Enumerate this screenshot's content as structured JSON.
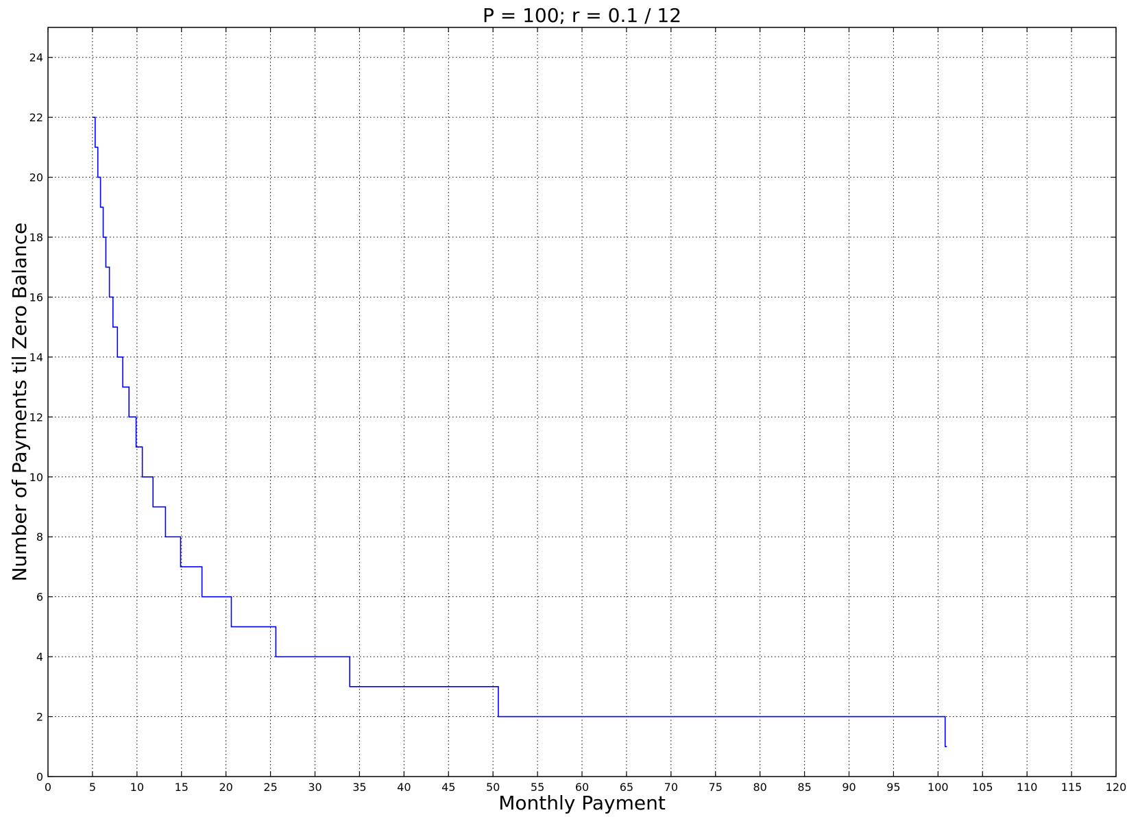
{
  "chart_data": {
    "type": "line",
    "title": "P = 100; r = 0.1 / 12",
    "xlabel": "Monthly Payment",
    "ylabel": "Number of Payments til Zero Balance",
    "xlim": [
      0,
      120
    ],
    "ylim": [
      0,
      25
    ],
    "grid": true,
    "x_ticks": [
      0,
      5,
      10,
      15,
      20,
      25,
      30,
      35,
      40,
      45,
      50,
      55,
      60,
      65,
      70,
      75,
      80,
      85,
      90,
      95,
      100,
      105,
      110,
      115,
      120
    ],
    "y_ticks": [
      0,
      2,
      4,
      6,
      8,
      10,
      12,
      14,
      16,
      18,
      20,
      22,
      24
    ],
    "series": [
      {
        "color": "#0000ff",
        "step": true,
        "x": [
          5.0,
          5.3,
          5.6,
          5.9,
          6.2,
          6.5,
          6.9,
          7.3,
          7.8,
          8.4,
          9.1,
          9.9,
          10.6,
          11.8,
          13.2,
          14.9,
          17.3,
          20.6,
          25.6,
          33.9,
          50.6,
          100.8,
          101.0
        ],
        "y": [
          22,
          21,
          20,
          19,
          18,
          17,
          16,
          15,
          14,
          13,
          12,
          11,
          10,
          9,
          8,
          7,
          6,
          5,
          4,
          3,
          2,
          1,
          1
        ]
      }
    ]
  }
}
